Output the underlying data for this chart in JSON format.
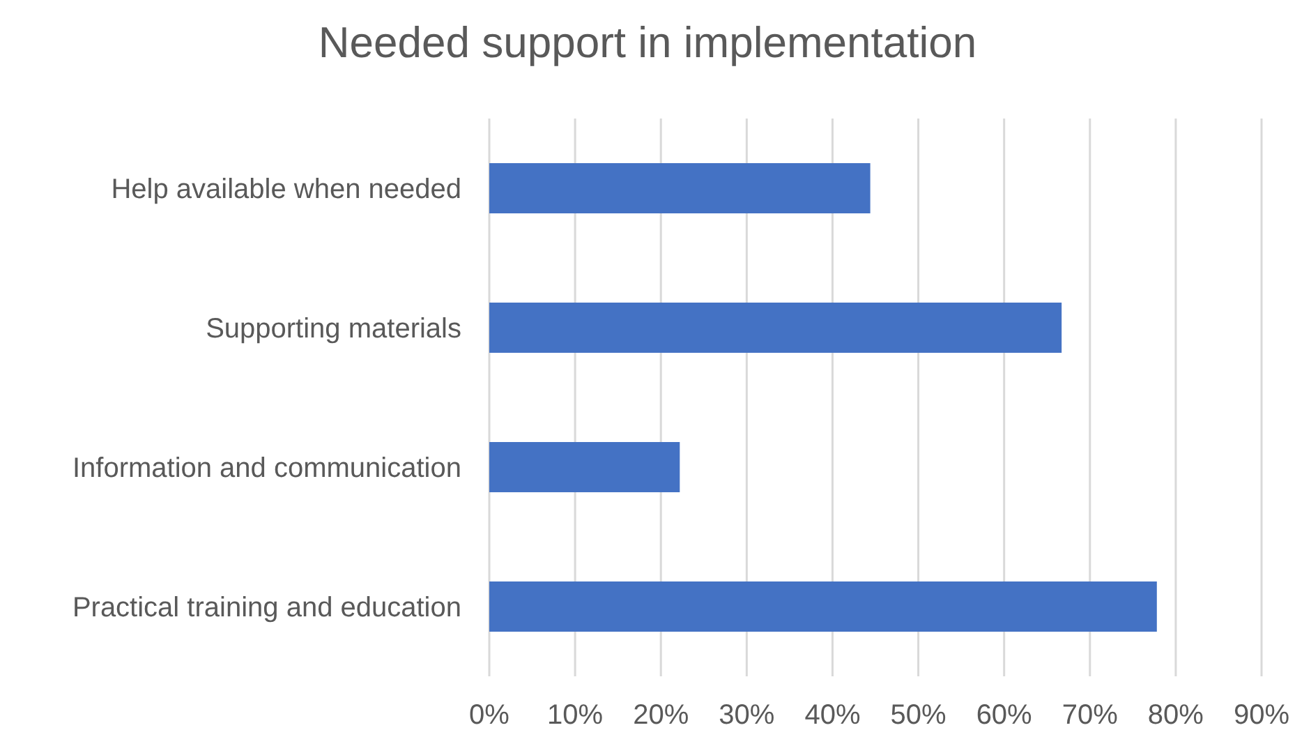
{
  "chart_data": {
    "type": "bar",
    "orientation": "horizontal",
    "title": "Needed support in implementation",
    "categories": [
      "Help available when needed",
      "Supporting materials",
      "Information and communication",
      "Practical training and education"
    ],
    "values": [
      44.4,
      66.7,
      22.2,
      77.8
    ],
    "color": "#4472c4",
    "xlim": [
      0,
      90
    ],
    "xticks": [
      {
        "value": 0,
        "label": "0%"
      },
      {
        "value": 10,
        "label": "10%"
      },
      {
        "value": 20,
        "label": "20%"
      },
      {
        "value": 30,
        "label": "30%"
      },
      {
        "value": 40,
        "label": "40%"
      },
      {
        "value": 50,
        "label": "50%"
      },
      {
        "value": 60,
        "label": "60%"
      },
      {
        "value": 70,
        "label": "70%"
      },
      {
        "value": 80,
        "label": "80%"
      },
      {
        "value": 90,
        "label": "90%"
      }
    ],
    "grid": "x"
  }
}
